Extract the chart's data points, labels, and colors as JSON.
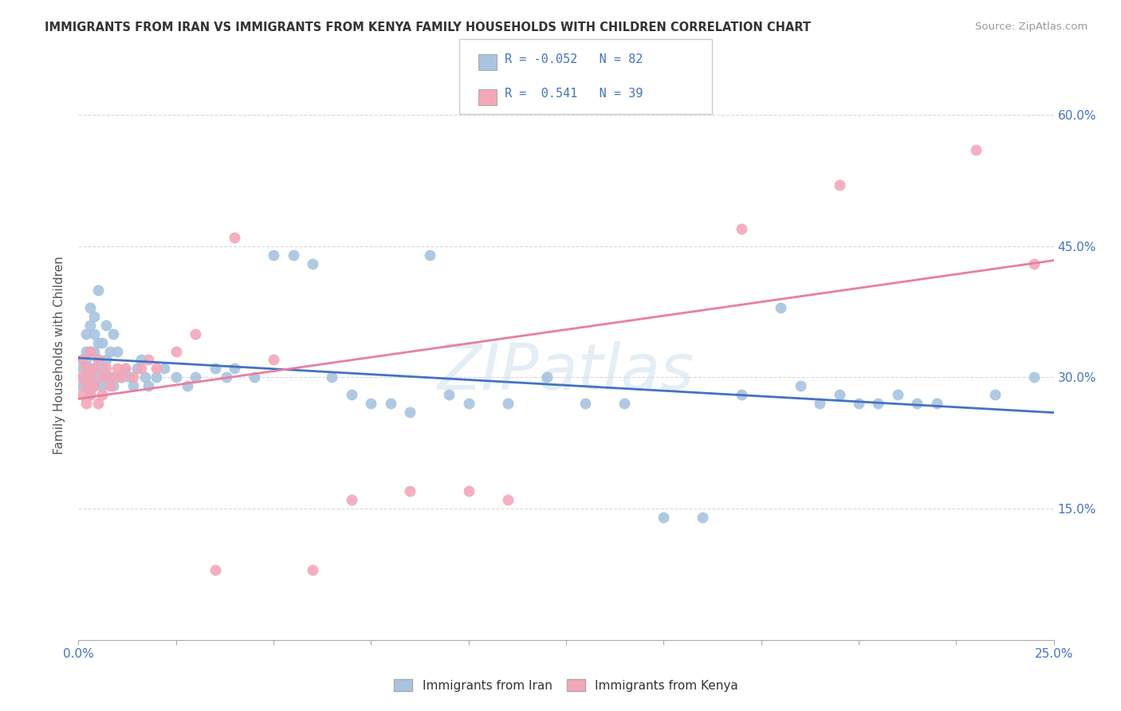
{
  "title": "IMMIGRANTS FROM IRAN VS IMMIGRANTS FROM KENYA FAMILY HOUSEHOLDS WITH CHILDREN CORRELATION CHART",
  "source": "Source: ZipAtlas.com",
  "ylabel": "Family Households with Children",
  "xlim": [
    0.0,
    0.25
  ],
  "ylim": [
    0.0,
    0.65
  ],
  "iran_R": -0.052,
  "iran_N": 82,
  "kenya_R": 0.541,
  "kenya_N": 39,
  "iran_color": "#a8c4e0",
  "kenya_color": "#f4a7b9",
  "iran_line_color": "#4472c4",
  "kenya_line_color": "#e87fa0",
  "legend_label_iran": "Immigrants from Iran",
  "legend_label_kenya": "Immigrants from Kenya",
  "watermark": "ZIPatlas",
  "background_color": "#ffffff",
  "grid_color": "#d8d8d8",
  "iran_x": [
    0.001,
    0.001,
    0.001,
    0.001,
    0.002,
    0.002,
    0.002,
    0.002,
    0.002,
    0.003,
    0.003,
    0.003,
    0.003,
    0.003,
    0.003,
    0.004,
    0.004,
    0.004,
    0.004,
    0.004,
    0.005,
    0.005,
    0.005,
    0.005,
    0.006,
    0.006,
    0.006,
    0.007,
    0.007,
    0.007,
    0.008,
    0.008,
    0.009,
    0.009,
    0.01,
    0.01,
    0.011,
    0.012,
    0.013,
    0.014,
    0.015,
    0.016,
    0.017,
    0.018,
    0.02,
    0.022,
    0.025,
    0.028,
    0.03,
    0.035,
    0.038,
    0.04,
    0.045,
    0.05,
    0.055,
    0.06,
    0.065,
    0.07,
    0.075,
    0.08,
    0.085,
    0.09,
    0.095,
    0.1,
    0.11,
    0.12,
    0.13,
    0.14,
    0.15,
    0.16,
    0.17,
    0.18,
    0.185,
    0.19,
    0.195,
    0.2,
    0.205,
    0.21,
    0.215,
    0.22,
    0.235,
    0.245
  ],
  "iran_y": [
    0.29,
    0.3,
    0.31,
    0.32,
    0.29,
    0.31,
    0.32,
    0.33,
    0.35,
    0.28,
    0.3,
    0.31,
    0.33,
    0.36,
    0.38,
    0.29,
    0.31,
    0.33,
    0.35,
    0.37,
    0.3,
    0.32,
    0.34,
    0.4,
    0.29,
    0.31,
    0.34,
    0.3,
    0.32,
    0.36,
    0.3,
    0.33,
    0.29,
    0.35,
    0.3,
    0.33,
    0.3,
    0.31,
    0.3,
    0.29,
    0.31,
    0.32,
    0.3,
    0.29,
    0.3,
    0.31,
    0.3,
    0.29,
    0.3,
    0.31,
    0.3,
    0.31,
    0.3,
    0.44,
    0.44,
    0.43,
    0.3,
    0.28,
    0.27,
    0.27,
    0.26,
    0.44,
    0.28,
    0.27,
    0.27,
    0.3,
    0.27,
    0.27,
    0.14,
    0.14,
    0.28,
    0.38,
    0.29,
    0.27,
    0.28,
    0.27,
    0.27,
    0.28,
    0.27,
    0.27,
    0.28,
    0.3
  ],
  "kenya_x": [
    0.001,
    0.001,
    0.001,
    0.002,
    0.002,
    0.002,
    0.003,
    0.003,
    0.003,
    0.004,
    0.004,
    0.005,
    0.005,
    0.006,
    0.006,
    0.007,
    0.008,
    0.009,
    0.01,
    0.011,
    0.012,
    0.014,
    0.016,
    0.018,
    0.02,
    0.025,
    0.03,
    0.035,
    0.04,
    0.05,
    0.06,
    0.07,
    0.085,
    0.1,
    0.11,
    0.17,
    0.195,
    0.23,
    0.245
  ],
  "kenya_y": [
    0.28,
    0.3,
    0.32,
    0.27,
    0.29,
    0.31,
    0.28,
    0.3,
    0.33,
    0.29,
    0.31,
    0.27,
    0.32,
    0.28,
    0.3,
    0.31,
    0.29,
    0.3,
    0.31,
    0.3,
    0.31,
    0.3,
    0.31,
    0.32,
    0.31,
    0.33,
    0.35,
    0.08,
    0.46,
    0.32,
    0.08,
    0.16,
    0.17,
    0.17,
    0.16,
    0.47,
    0.52,
    0.56,
    0.43
  ]
}
